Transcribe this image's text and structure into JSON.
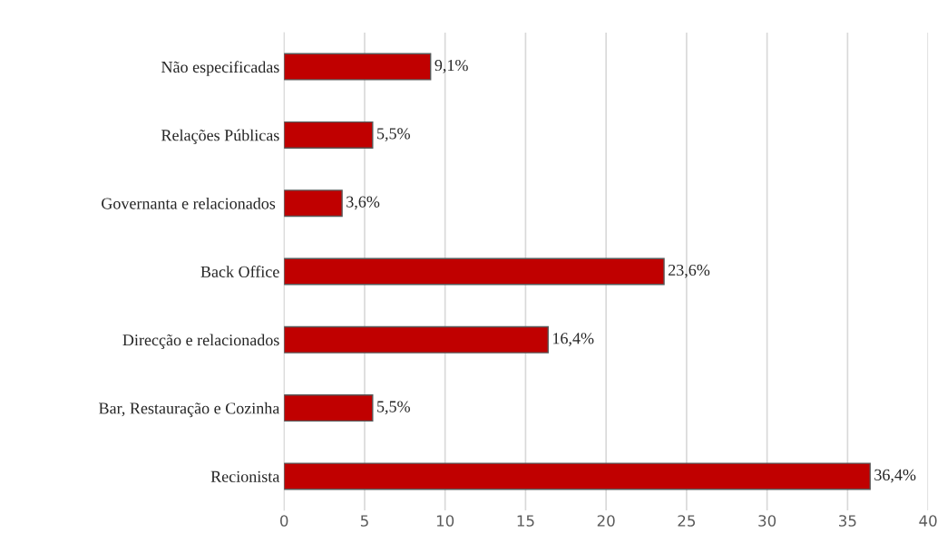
{
  "chart_data": {
    "type": "bar",
    "orientation": "horizontal",
    "categories": [
      "Não especificadas",
      "Relações Públicas",
      "Governanta e relacionados ",
      "Back Office",
      "Direcção e relacionados",
      "Bar, Restauração e Cozinha",
      "Recionista"
    ],
    "values": [
      9.1,
      5.5,
      3.6,
      23.6,
      16.4,
      5.5,
      36.4
    ],
    "value_labels": [
      "9,1%",
      "5,5%",
      "3,6%",
      "23,6%",
      "16,4%",
      "5,5%",
      "36,4%"
    ],
    "color": "#c00000",
    "xlim": [
      0,
      40
    ],
    "xticks": [
      0,
      5,
      10,
      15,
      20,
      25,
      30,
      35,
      40
    ],
    "grid": "x"
  }
}
